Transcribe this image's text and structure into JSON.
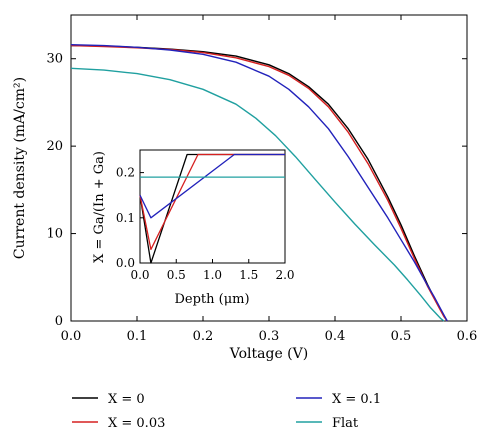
{
  "chart_data": [
    {
      "type": "line",
      "xlabel": "Voltage (V)",
      "ylabel": "Current density (mA/cm²)",
      "xlim": [
        0.0,
        0.6
      ],
      "ylim": [
        0,
        35
      ],
      "xticks": [
        "0.0",
        "0.1",
        "0.2",
        "0.3",
        "0.4",
        "0.5",
        "0.6"
      ],
      "yticks": [
        "0",
        "10",
        "20",
        "30"
      ],
      "grid": false,
      "legend_position": "below",
      "series": [
        {
          "name": "X = 0",
          "color": "#000000",
          "x": [
            0.0,
            0.05,
            0.1,
            0.15,
            0.2,
            0.25,
            0.3,
            0.33,
            0.36,
            0.39,
            0.42,
            0.45,
            0.48,
            0.5,
            0.52,
            0.54,
            0.55,
            0.56,
            0.565,
            0.57
          ],
          "y": [
            31.5,
            31.45,
            31.3,
            31.1,
            30.8,
            30.3,
            29.3,
            28.3,
            26.8,
            24.8,
            22.0,
            18.5,
            14.2,
            11.0,
            7.5,
            4.2,
            2.7,
            1.3,
            0.6,
            0.0
          ]
        },
        {
          "name": "X = 0.03",
          "color": "#d62020",
          "x": [
            0.0,
            0.05,
            0.1,
            0.15,
            0.2,
            0.25,
            0.3,
            0.33,
            0.36,
            0.39,
            0.42,
            0.45,
            0.48,
            0.5,
            0.52,
            0.54,
            0.55,
            0.56,
            0.565,
            0.57
          ],
          "y": [
            31.5,
            31.4,
            31.25,
            31.05,
            30.7,
            30.1,
            29.1,
            28.1,
            26.6,
            24.5,
            21.6,
            18.0,
            13.8,
            10.6,
            7.2,
            4.0,
            2.6,
            1.2,
            0.5,
            0.0
          ]
        },
        {
          "name": "X = 0.1",
          "color": "#2222bb",
          "x": [
            0.0,
            0.05,
            0.1,
            0.15,
            0.2,
            0.25,
            0.3,
            0.33,
            0.36,
            0.39,
            0.42,
            0.45,
            0.48,
            0.5,
            0.52,
            0.54,
            0.55,
            0.56,
            0.565,
            0.57
          ],
          "y": [
            31.6,
            31.5,
            31.3,
            31.0,
            30.5,
            29.6,
            28.0,
            26.5,
            24.5,
            22.0,
            18.8,
            15.3,
            11.8,
            9.3,
            6.8,
            4.1,
            2.8,
            1.4,
            0.7,
            0.0
          ]
        },
        {
          "name": "Flat",
          "color": "#20a0a0",
          "x": [
            0.0,
            0.05,
            0.1,
            0.15,
            0.2,
            0.25,
            0.28,
            0.31,
            0.34,
            0.37,
            0.4,
            0.43,
            0.46,
            0.49,
            0.51,
            0.53,
            0.545,
            0.555,
            0.56,
            0.565
          ],
          "y": [
            28.9,
            28.7,
            28.3,
            27.6,
            26.5,
            24.8,
            23.2,
            21.2,
            18.8,
            16.2,
            13.6,
            11.1,
            8.7,
            6.4,
            4.7,
            2.9,
            1.5,
            0.7,
            0.3,
            0.0
          ]
        }
      ]
    },
    {
      "type": "line",
      "xlabel": "Depth (μm)",
      "ylabel": "X = Ga/(In + Ga)",
      "xlim": [
        0.0,
        2.0
      ],
      "ylim": [
        0.0,
        0.25
      ],
      "xticks": [
        "0.0",
        "0.5",
        "1.0",
        "1.5",
        "2.0"
      ],
      "yticks": [
        "0.0",
        "0.1",
        "0.2"
      ],
      "grid": false,
      "series": [
        {
          "name": "X = 0",
          "color": "#000000",
          "x": [
            0.0,
            0.15,
            0.65,
            2.0
          ],
          "y": [
            0.15,
            0.0,
            0.24,
            0.24
          ]
        },
        {
          "name": "X = 0.03",
          "color": "#d62020",
          "x": [
            0.0,
            0.15,
            0.8,
            2.0
          ],
          "y": [
            0.15,
            0.03,
            0.24,
            0.24
          ]
        },
        {
          "name": "X = 0.1",
          "color": "#2222bb",
          "x": [
            0.0,
            0.15,
            1.3,
            2.0
          ],
          "y": [
            0.15,
            0.1,
            0.24,
            0.24
          ]
        },
        {
          "name": "Flat",
          "color": "#20a0a0",
          "x": [
            0.0,
            2.0
          ],
          "y": [
            0.19,
            0.19
          ]
        }
      ]
    }
  ]
}
